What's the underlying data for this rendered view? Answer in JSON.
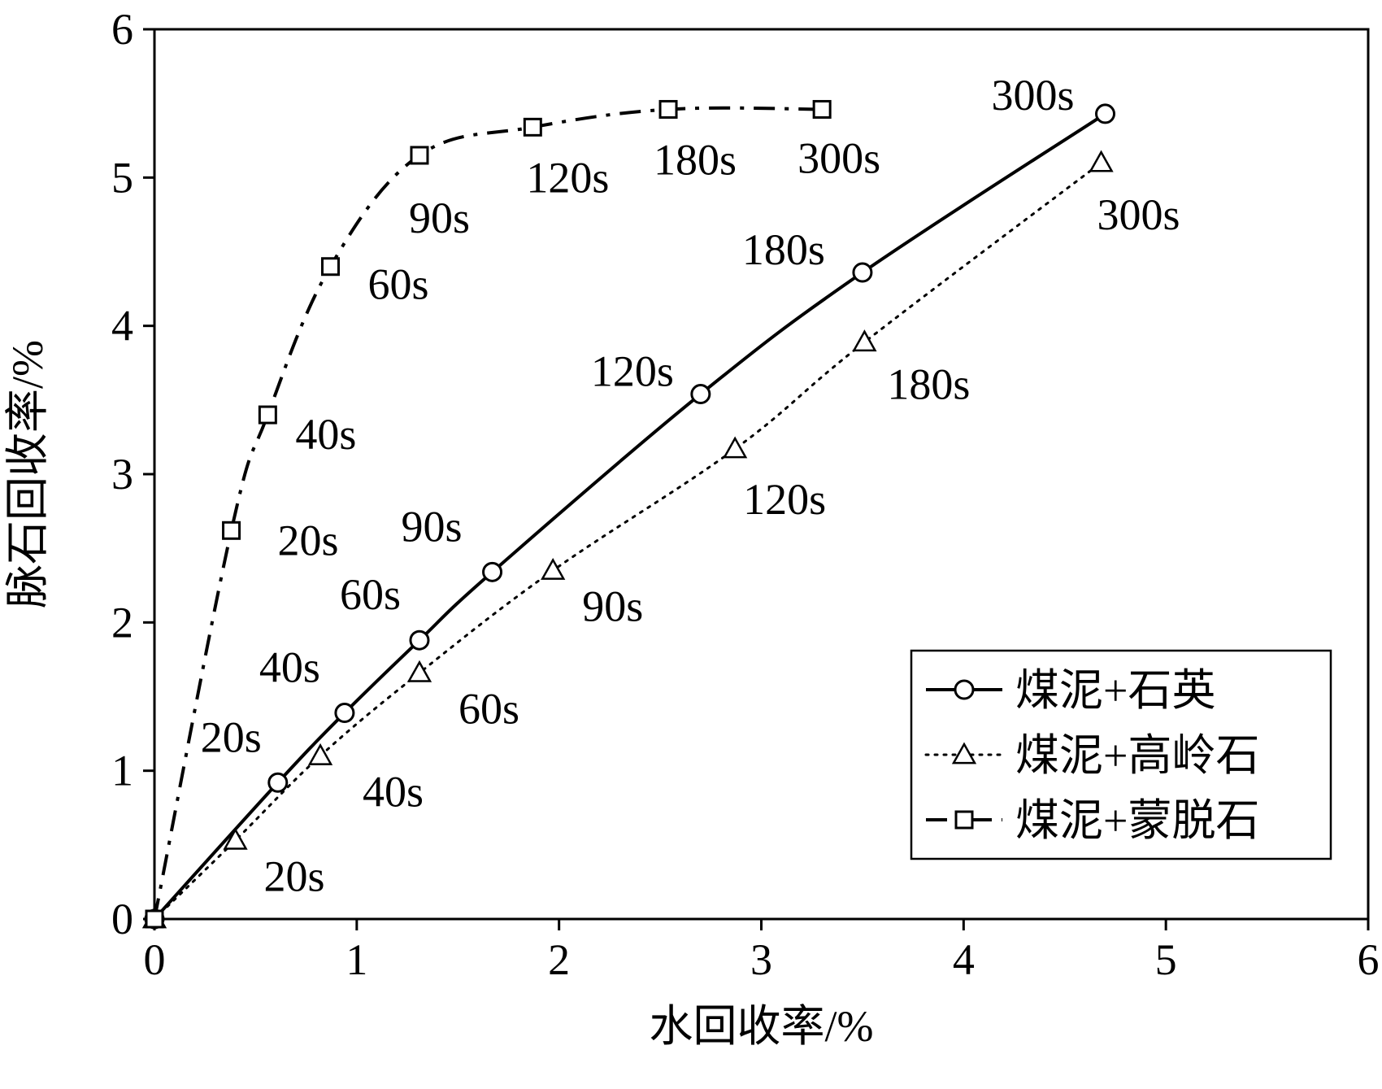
{
  "chart_data": {
    "type": "line",
    "xlabel": "水回收率/%",
    "ylabel": "脉石回收率/%",
    "xlim": [
      0,
      6
    ],
    "ylim": [
      0,
      6
    ],
    "xticks": [
      0,
      1,
      2,
      3,
      4,
      5,
      6
    ],
    "yticks": [
      0,
      1,
      2,
      3,
      4,
      5,
      6
    ],
    "xtick_labels": [
      "0",
      "1",
      "2",
      "3",
      "4",
      "5",
      "6"
    ],
    "ytick_labels": [
      "0",
      "1",
      "2",
      "3",
      "4",
      "5",
      "6"
    ],
    "grid": false,
    "legend_position": "bottom-right",
    "series": [
      {
        "name": "煤泥+石英",
        "marker": "circle",
        "line_style": "solid",
        "x": [
          0,
          0.61,
          0.94,
          1.31,
          1.67,
          2.7,
          3.5,
          4.7
        ],
        "y": [
          0,
          0.92,
          1.39,
          1.88,
          2.34,
          3.54,
          4.36,
          5.43
        ],
        "labels": [
          "",
          "20s",
          "40s",
          "60s",
          "90s",
          "120s",
          "180s",
          "300s"
        ]
      },
      {
        "name": "煤泥+高岭石",
        "marker": "triangle",
        "line_style": "dotted",
        "x": [
          0,
          0.4,
          0.82,
          1.31,
          1.97,
          2.87,
          3.51,
          4.68
        ],
        "y": [
          0,
          0.53,
          1.1,
          1.66,
          2.35,
          3.17,
          3.89,
          5.1
        ],
        "labels": [
          "",
          "20s",
          "40s",
          "60s",
          "90s",
          "120s",
          "180s",
          "300s"
        ]
      },
      {
        "name": "煤泥+蒙脱石",
        "marker": "square",
        "line_style": "dashdot",
        "x": [
          0,
          0.38,
          0.56,
          0.87,
          1.31,
          1.87,
          2.54,
          3.3
        ],
        "y": [
          0,
          2.62,
          3.4,
          4.4,
          5.15,
          5.34,
          5.46,
          5.46
        ],
        "labels": [
          "",
          "20s",
          "40s",
          "60s",
          "90s",
          "120s",
          "180s",
          "300s"
        ]
      }
    ]
  }
}
